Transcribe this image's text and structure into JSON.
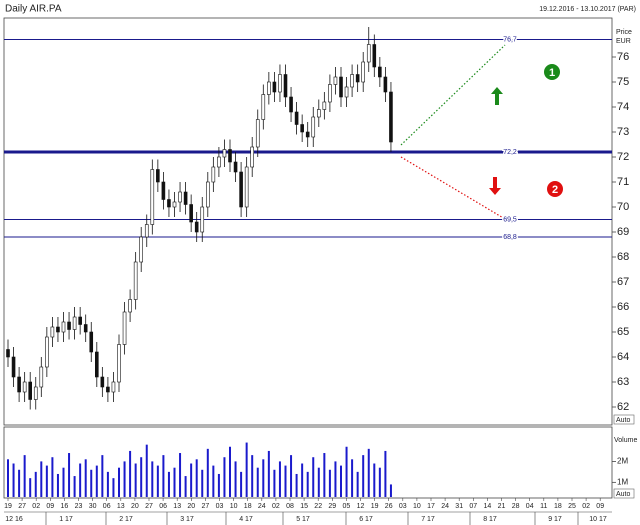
{
  "chart_data": {
    "type": "candlestick",
    "title": "Daily AIR.PA",
    "subtitle": "19.12.2016 - 13.10.2017 (PAR)",
    "y_label": "Price",
    "y_unit": "EUR",
    "volume_label": "Volume",
    "auto_label": "Auto",
    "ylim": [
      61.28,
      77.56
    ],
    "yticks": [
      62,
      63,
      64,
      65,
      66,
      67,
      68,
      69,
      70,
      71,
      72,
      73,
      74,
      75,
      76
    ],
    "vol_ylim": [
      300000,
      3500000
    ],
    "vol_yticks": [
      {
        "value": 1000000,
        "label": "1M"
      },
      {
        "value": 2000000,
        "label": "2M"
      }
    ],
    "up_color": "#ffffff",
    "down_color": "#111111",
    "volume_color": "#1a1acc",
    "level_color": "#1a1a8c",
    "levels": [
      {
        "value": 76.7,
        "label": "76,7",
        "style": "normal"
      },
      {
        "value": 72.2,
        "label": "72,2",
        "style": "bold"
      },
      {
        "value": 69.5,
        "label": "69,5",
        "style": "normal"
      },
      {
        "value": 68.8,
        "label": "68,8",
        "style": "normal"
      }
    ],
    "open": [
      64.3,
      64.0,
      63.2,
      62.6,
      63.0,
      62.3,
      62.8,
      63.6,
      64.8,
      65.2,
      65.0,
      65.4,
      65.1,
      65.6,
      65.3,
      65.0,
      64.2,
      63.2,
      62.8,
      62.6,
      63.0,
      64.5,
      65.8,
      66.3,
      67.8,
      68.8,
      69.3,
      71.5,
      71.0,
      70.3,
      70.0,
      70.2,
      70.6,
      70.1,
      69.4,
      69.0,
      70.0,
      71.0,
      71.6,
      72.0,
      72.3,
      71.8,
      71.4,
      70.0,
      71.6,
      72.4,
      73.5,
      74.5,
      75.0,
      74.6,
      75.3,
      74.4,
      73.8,
      73.3,
      73.0,
      72.8,
      73.6,
      73.9,
      74.2,
      74.9,
      75.2,
      74.4,
      74.8,
      75.3,
      75.0,
      75.8,
      76.5,
      75.6,
      75.2,
      74.6
    ],
    "high": [
      64.7,
      64.4,
      63.6,
      63.4,
      63.4,
      63.2,
      64.0,
      65.2,
      65.6,
      65.6,
      65.8,
      65.8,
      66.0,
      66.0,
      65.7,
      65.4,
      64.6,
      63.6,
      63.2,
      63.4,
      64.9,
      66.2,
      66.7,
      68.2,
      69.2,
      69.7,
      71.9,
      71.9,
      71.4,
      70.7,
      70.6,
      71.0,
      71.0,
      70.5,
      69.8,
      70.4,
      71.4,
      72.0,
      72.4,
      72.7,
      72.7,
      72.2,
      71.8,
      72.0,
      72.8,
      73.9,
      74.9,
      75.4,
      75.4,
      75.7,
      75.7,
      74.8,
      74.2,
      73.7,
      73.4,
      74.0,
      74.3,
      74.6,
      75.3,
      75.6,
      75.6,
      75.2,
      75.7,
      75.7,
      76.2,
      77.2,
      76.9,
      76.0,
      75.6,
      75.0
    ],
    "low": [
      63.6,
      62.8,
      62.2,
      62.2,
      61.9,
      61.9,
      62.4,
      63.2,
      64.4,
      64.6,
      64.6,
      64.7,
      64.7,
      64.9,
      64.6,
      63.8,
      62.8,
      62.4,
      62.2,
      62.2,
      62.6,
      64.1,
      65.4,
      65.9,
      67.4,
      68.4,
      68.9,
      70.6,
      69.9,
      69.6,
      69.6,
      69.8,
      69.7,
      69.0,
      68.6,
      68.6,
      69.6,
      70.6,
      71.2,
      71.6,
      71.4,
      71.0,
      69.6,
      69.6,
      71.2,
      72.0,
      73.1,
      74.1,
      74.2,
      74.2,
      74.0,
      73.4,
      72.9,
      72.6,
      72.4,
      72.4,
      73.2,
      73.5,
      73.8,
      74.5,
      74.0,
      74.0,
      74.4,
      74.6,
      74.6,
      75.4,
      75.2,
      74.8,
      74.2,
      72.2
    ],
    "close": [
      64.0,
      63.2,
      62.6,
      63.0,
      62.3,
      62.8,
      63.6,
      64.8,
      65.2,
      65.0,
      65.4,
      65.1,
      65.6,
      65.3,
      65.0,
      64.2,
      63.2,
      62.8,
      62.6,
      63.0,
      64.5,
      65.8,
      66.3,
      67.8,
      68.8,
      69.3,
      71.5,
      71.0,
      70.3,
      70.0,
      70.2,
      70.6,
      70.1,
      69.4,
      69.0,
      70.0,
      71.0,
      71.6,
      72.0,
      72.3,
      71.8,
      71.4,
      70.0,
      71.6,
      72.4,
      73.5,
      74.5,
      75.0,
      74.6,
      75.3,
      74.4,
      73.8,
      73.3,
      73.0,
      72.8,
      73.6,
      73.9,
      74.2,
      74.9,
      75.2,
      74.4,
      74.8,
      75.3,
      75.0,
      75.8,
      76.5,
      75.6,
      75.2,
      74.6,
      72.6
    ],
    "volume": [
      2100000,
      1900000,
      1600000,
      2300000,
      1200000,
      1500000,
      2000000,
      1800000,
      2200000,
      1400000,
      1700000,
      2400000,
      1300000,
      1900000,
      2100000,
      1600000,
      1800000,
      2300000,
      1500000,
      1200000,
      1700000,
      2000000,
      2500000,
      1900000,
      2200000,
      2800000,
      2000000,
      1800000,
      2300000,
      1500000,
      1700000,
      2400000,
      1300000,
      1900000,
      2100000,
      1600000,
      2600000,
      1800000,
      1400000,
      2200000,
      2700000,
      2000000,
      1500000,
      2900000,
      2300000,
      1700000,
      2100000,
      2500000,
      1600000,
      2000000,
      1800000,
      2300000,
      1400000,
      1900000,
      1500000,
      2200000,
      1700000,
      2400000,
      1600000,
      2000000,
      1800000,
      2700000,
      2100000,
      1500000,
      2300000,
      2600000,
      1900000,
      1700000,
      2500000,
      900000
    ],
    "day_labels": [
      "19",
      "27",
      "02",
      "09",
      "16",
      "23",
      "30",
      "06",
      "13",
      "20",
      "27",
      "06",
      "13",
      "20",
      "27",
      "03",
      "10",
      "18",
      "24",
      "02",
      "08",
      "15",
      "22",
      "29",
      "05",
      "12",
      "19",
      "26",
      "03",
      "10",
      "17",
      "24",
      "31",
      "07",
      "14",
      "21",
      "28",
      "04",
      "11",
      "18",
      "25",
      "02",
      "09"
    ],
    "month_labels": [
      "12 16",
      "1 17",
      "2 17",
      "3 17",
      "4 17",
      "5 17",
      "6 17",
      "7 17",
      "8 17",
      "9 17",
      "10 17"
    ],
    "annotations": [
      {
        "text": "1",
        "direction": "up",
        "color": "#1a8a1a"
      },
      {
        "text": "2",
        "direction": "down",
        "color": "#e01010"
      }
    ]
  }
}
